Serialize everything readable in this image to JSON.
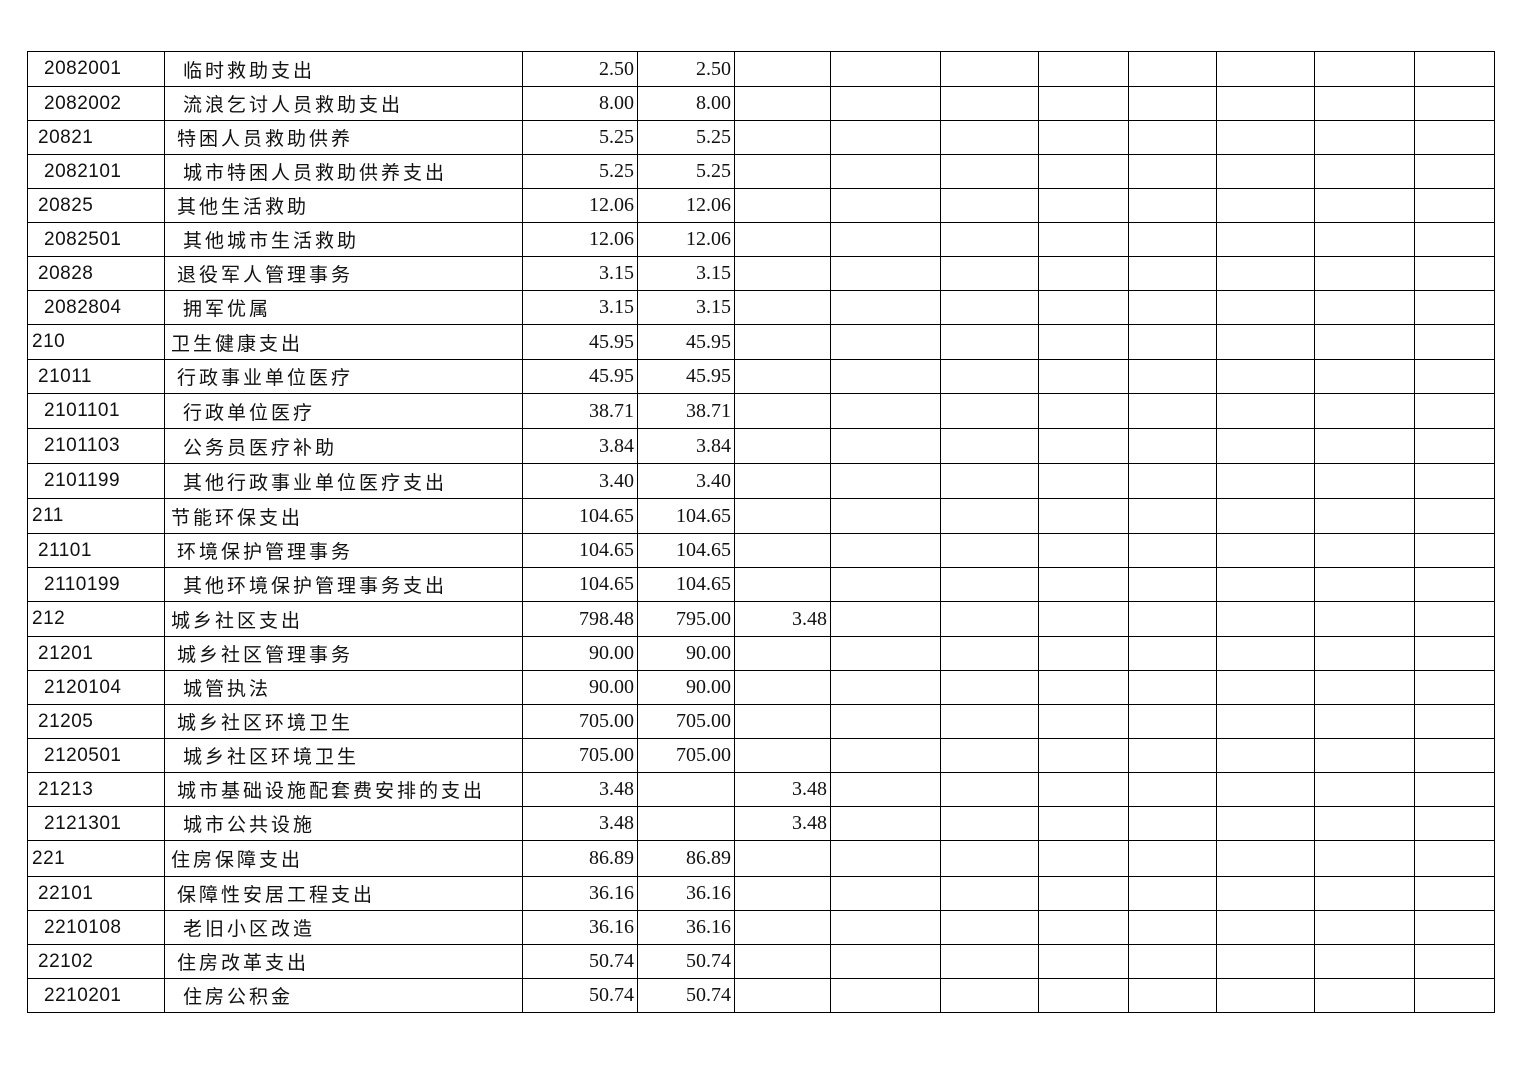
{
  "table": {
    "rows": [
      {
        "code": "2082001",
        "name": "临时救助支出",
        "total": "2.50",
        "c1": "2.50",
        "c2": ""
      },
      {
        "code": "2082002",
        "name": "流浪乞讨人员救助支出",
        "total": "8.00",
        "c1": "8.00",
        "c2": ""
      },
      {
        "code": "20821",
        "name": "特困人员救助供养",
        "total": "5.25",
        "c1": "5.25",
        "c2": ""
      },
      {
        "code": "2082101",
        "name": "城市特困人员救助供养支出",
        "total": "5.25",
        "c1": "5.25",
        "c2": ""
      },
      {
        "code": "20825",
        "name": "其他生活救助",
        "total": "12.06",
        "c1": "12.06",
        "c2": ""
      },
      {
        "code": "2082501",
        "name": "其他城市生活救助",
        "total": "12.06",
        "c1": "12.06",
        "c2": ""
      },
      {
        "code": "20828",
        "name": "退役军人管理事务",
        "total": "3.15",
        "c1": "3.15",
        "c2": ""
      },
      {
        "code": "2082804",
        "name": "拥军优属",
        "total": "3.15",
        "c1": "3.15",
        "c2": ""
      },
      {
        "code": "210",
        "name": "卫生健康支出",
        "total": "45.95",
        "c1": "45.95",
        "c2": ""
      },
      {
        "code": "21011",
        "name": "行政事业单位医疗",
        "total": "45.95",
        "c1": "45.95",
        "c2": ""
      },
      {
        "code": "2101101",
        "name": "行政单位医疗",
        "total": "38.71",
        "c1": "38.71",
        "c2": ""
      },
      {
        "code": "2101103",
        "name": "公务员医疗补助",
        "total": "3.84",
        "c1": "3.84",
        "c2": ""
      },
      {
        "code": "2101199",
        "name": "其他行政事业单位医疗支出",
        "total": "3.40",
        "c1": "3.40",
        "c2": ""
      },
      {
        "code": "211",
        "name": "节能环保支出",
        "total": "104.65",
        "c1": "104.65",
        "c2": ""
      },
      {
        "code": "21101",
        "name": "环境保护管理事务",
        "total": "104.65",
        "c1": "104.65",
        "c2": ""
      },
      {
        "code": "2110199",
        "name": "其他环境保护管理事务支出",
        "total": "104.65",
        "c1": "104.65",
        "c2": ""
      },
      {
        "code": "212",
        "name": "城乡社区支出",
        "total": "798.48",
        "c1": "795.00",
        "c2": "3.48"
      },
      {
        "code": "21201",
        "name": "城乡社区管理事务",
        "total": "90.00",
        "c1": "90.00",
        "c2": ""
      },
      {
        "code": "2120104",
        "name": "城管执法",
        "total": "90.00",
        "c1": "90.00",
        "c2": ""
      },
      {
        "code": "21205",
        "name": "城乡社区环境卫生",
        "total": "705.00",
        "c1": "705.00",
        "c2": ""
      },
      {
        "code": "2120501",
        "name": "城乡社区环境卫生",
        "total": "705.00",
        "c1": "705.00",
        "c2": ""
      },
      {
        "code": "21213",
        "name": "城市基础设施配套费安排的支出",
        "total": "3.48",
        "c1": "",
        "c2": "3.48"
      },
      {
        "code": "2121301",
        "name": "城市公共设施",
        "total": "3.48",
        "c1": "",
        "c2": "3.48"
      },
      {
        "code": "221",
        "name": "住房保障支出",
        "total": "86.89",
        "c1": "86.89",
        "c2": ""
      },
      {
        "code": "22101",
        "name": "保障性安居工程支出",
        "total": "36.16",
        "c1": "36.16",
        "c2": ""
      },
      {
        "code": "2210108",
        "name": "老旧小区改造",
        "total": "36.16",
        "c1": "36.16",
        "c2": ""
      },
      {
        "code": "22102",
        "name": "住房改革支出",
        "total": "50.74",
        "c1": "50.74",
        "c2": ""
      },
      {
        "code": "2210201",
        "name": "住房公积金",
        "total": "50.74",
        "c1": "50.74",
        "c2": ""
      }
    ]
  }
}
